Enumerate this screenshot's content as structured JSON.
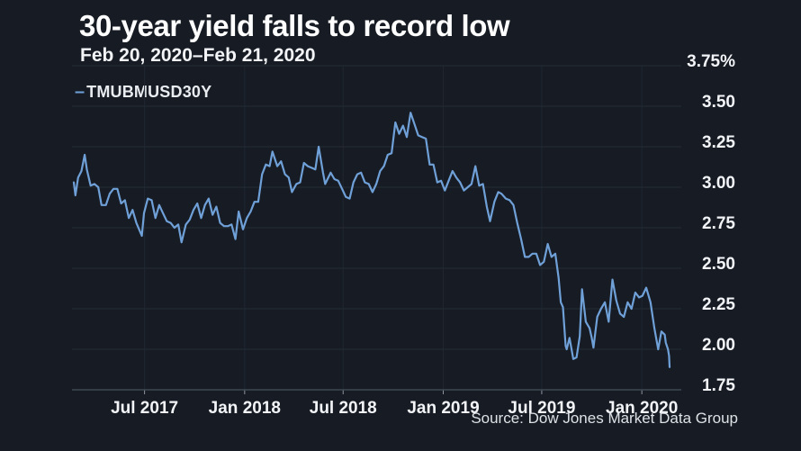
{
  "header": {
    "title": "30-year yield falls to record low",
    "subtitle": "Feb 20, 2020–Feb 21, 2020"
  },
  "legend": {
    "marker": "–",
    "label": "TMUBMUSD30Y"
  },
  "source": "Source: Dow Jones Market Data Group",
  "colors": {
    "background": "#171c24",
    "series_line": "#6fa0d8",
    "grid_horizontal": "#242b35",
    "grid_vertical": "#1f2630",
    "axis_line": "#3e4651",
    "tick": "#8d949e",
    "text_primary": "#ffffff",
    "text_secondary": "#f2f4f7",
    "text_source": "#dde1e6"
  },
  "chart_data": {
    "type": "line",
    "title": "30-year yield falls to record low",
    "subtitle": "Feb 20, 2020–Feb 21, 2020",
    "xlabel": "",
    "ylabel": "",
    "grid": true,
    "legend_position": "top-left",
    "x_range": [
      "2017-02-21",
      "2020-02-21"
    ],
    "ylim": [
      1.75,
      3.75
    ],
    "yticks": [
      {
        "label": "3.75%",
        "value": 3.75
      },
      {
        "label": "3.50",
        "value": 3.5
      },
      {
        "label": "3.25",
        "value": 3.25
      },
      {
        "label": "3.00",
        "value": 3.0
      },
      {
        "label": "2.75",
        "value": 2.75
      },
      {
        "label": "2.50",
        "value": 2.5
      },
      {
        "label": "2.25",
        "value": 2.25
      },
      {
        "label": "2.00",
        "value": 2.0
      },
      {
        "label": "1.75",
        "value": 1.75
      }
    ],
    "xticks": [
      {
        "label": "Jul 2017",
        "date": "2017-07-01"
      },
      {
        "label": "Jan 2018",
        "date": "2018-01-01"
      },
      {
        "label": "Jul 2018",
        "date": "2018-07-01"
      },
      {
        "label": "Jan 2019",
        "date": "2019-01-01"
      },
      {
        "label": "Jul 2019",
        "date": "2019-07-01"
      },
      {
        "label": "Jan 2020",
        "date": "2020-01-01"
      }
    ],
    "series": [
      {
        "name": "TMUBMUSD30Y",
        "color": "#6fa0d8",
        "points": [
          [
            "2017-02-21",
            3.03
          ],
          [
            "2017-02-24",
            2.95
          ],
          [
            "2017-03-01",
            3.06
          ],
          [
            "2017-03-07",
            3.1
          ],
          [
            "2017-03-13",
            3.2
          ],
          [
            "2017-03-17",
            3.11
          ],
          [
            "2017-03-24",
            3.01
          ],
          [
            "2017-03-31",
            3.02
          ],
          [
            "2017-04-07",
            3.0
          ],
          [
            "2017-04-13",
            2.89
          ],
          [
            "2017-04-21",
            2.89
          ],
          [
            "2017-04-28",
            2.96
          ],
          [
            "2017-05-05",
            2.99
          ],
          [
            "2017-05-12",
            2.99
          ],
          [
            "2017-05-19",
            2.9
          ],
          [
            "2017-05-26",
            2.92
          ],
          [
            "2017-06-02",
            2.81
          ],
          [
            "2017-06-09",
            2.86
          ],
          [
            "2017-06-16",
            2.78
          ],
          [
            "2017-06-26",
            2.7
          ],
          [
            "2017-06-30",
            2.84
          ],
          [
            "2017-07-07",
            2.93
          ],
          [
            "2017-07-14",
            2.92
          ],
          [
            "2017-07-21",
            2.81
          ],
          [
            "2017-07-28",
            2.89
          ],
          [
            "2017-08-04",
            2.84
          ],
          [
            "2017-08-11",
            2.79
          ],
          [
            "2017-08-18",
            2.78
          ],
          [
            "2017-08-25",
            2.75
          ],
          [
            "2017-09-01",
            2.77
          ],
          [
            "2017-09-07",
            2.66
          ],
          [
            "2017-09-15",
            2.77
          ],
          [
            "2017-09-22",
            2.8
          ],
          [
            "2017-09-29",
            2.86
          ],
          [
            "2017-10-06",
            2.9
          ],
          [
            "2017-10-13",
            2.81
          ],
          [
            "2017-10-20",
            2.89
          ],
          [
            "2017-10-27",
            2.93
          ],
          [
            "2017-11-03",
            2.83
          ],
          [
            "2017-11-10",
            2.88
          ],
          [
            "2017-11-17",
            2.78
          ],
          [
            "2017-11-24",
            2.76
          ],
          [
            "2017-12-01",
            2.76
          ],
          [
            "2017-12-08",
            2.77
          ],
          [
            "2017-12-15",
            2.68
          ],
          [
            "2017-12-21",
            2.85
          ],
          [
            "2017-12-29",
            2.74
          ],
          [
            "2018-01-05",
            2.81
          ],
          [
            "2018-01-12",
            2.85
          ],
          [
            "2018-01-19",
            2.91
          ],
          [
            "2018-01-26",
            2.91
          ],
          [
            "2018-02-02",
            3.08
          ],
          [
            "2018-02-09",
            3.14
          ],
          [
            "2018-02-16",
            3.13
          ],
          [
            "2018-02-21",
            3.22
          ],
          [
            "2018-03-02",
            3.13
          ],
          [
            "2018-03-09",
            3.16
          ],
          [
            "2018-03-16",
            3.08
          ],
          [
            "2018-03-23",
            3.06
          ],
          [
            "2018-03-29",
            2.97
          ],
          [
            "2018-04-06",
            3.02
          ],
          [
            "2018-04-13",
            3.03
          ],
          [
            "2018-04-20",
            3.15
          ],
          [
            "2018-04-27",
            3.13
          ],
          [
            "2018-05-04",
            3.12
          ],
          [
            "2018-05-11",
            3.11
          ],
          [
            "2018-05-17",
            3.25
          ],
          [
            "2018-05-25",
            3.09
          ],
          [
            "2018-05-29",
            3.02
          ],
          [
            "2018-06-08",
            3.09
          ],
          [
            "2018-06-15",
            3.05
          ],
          [
            "2018-06-22",
            3.04
          ],
          [
            "2018-06-29",
            2.99
          ],
          [
            "2018-07-06",
            2.94
          ],
          [
            "2018-07-13",
            2.93
          ],
          [
            "2018-07-20",
            3.03
          ],
          [
            "2018-07-27",
            3.08
          ],
          [
            "2018-08-03",
            3.09
          ],
          [
            "2018-08-10",
            3.03
          ],
          [
            "2018-08-17",
            3.02
          ],
          [
            "2018-08-24",
            2.97
          ],
          [
            "2018-08-31",
            3.02
          ],
          [
            "2018-09-07",
            3.1
          ],
          [
            "2018-09-14",
            3.13
          ],
          [
            "2018-09-21",
            3.2
          ],
          [
            "2018-09-28",
            3.21
          ],
          [
            "2018-10-05",
            3.4
          ],
          [
            "2018-10-12",
            3.33
          ],
          [
            "2018-10-19",
            3.38
          ],
          [
            "2018-10-26",
            3.31
          ],
          [
            "2018-11-02",
            3.46
          ],
          [
            "2018-11-09",
            3.39
          ],
          [
            "2018-11-16",
            3.32
          ],
          [
            "2018-11-23",
            3.31
          ],
          [
            "2018-11-30",
            3.3
          ],
          [
            "2018-12-07",
            3.14
          ],
          [
            "2018-12-14",
            3.14
          ],
          [
            "2018-12-21",
            3.03
          ],
          [
            "2018-12-28",
            3.04
          ],
          [
            "2019-01-04",
            2.98
          ],
          [
            "2019-01-11",
            3.04
          ],
          [
            "2019-01-18",
            3.1
          ],
          [
            "2019-01-25",
            3.06
          ],
          [
            "2019-02-01",
            3.03
          ],
          [
            "2019-02-08",
            2.98
          ],
          [
            "2019-02-15",
            3.0
          ],
          [
            "2019-02-22",
            3.02
          ],
          [
            "2019-03-01",
            3.13
          ],
          [
            "2019-03-08",
            3.01
          ],
          [
            "2019-03-15",
            3.02
          ],
          [
            "2019-03-22",
            2.88
          ],
          [
            "2019-03-28",
            2.79
          ],
          [
            "2019-04-05",
            2.91
          ],
          [
            "2019-04-12",
            2.97
          ],
          [
            "2019-04-18",
            2.96
          ],
          [
            "2019-04-26",
            2.93
          ],
          [
            "2019-05-03",
            2.92
          ],
          [
            "2019-05-10",
            2.89
          ],
          [
            "2019-05-17",
            2.78
          ],
          [
            "2019-05-24",
            2.68
          ],
          [
            "2019-05-31",
            2.57
          ],
          [
            "2019-06-07",
            2.57
          ],
          [
            "2019-06-14",
            2.59
          ],
          [
            "2019-06-21",
            2.59
          ],
          [
            "2019-06-28",
            2.52
          ],
          [
            "2019-07-05",
            2.54
          ],
          [
            "2019-07-12",
            2.65
          ],
          [
            "2019-07-19",
            2.57
          ],
          [
            "2019-07-26",
            2.59
          ],
          [
            "2019-08-01",
            2.44
          ],
          [
            "2019-08-05",
            2.29
          ],
          [
            "2019-08-09",
            2.26
          ],
          [
            "2019-08-14",
            2.02
          ],
          [
            "2019-08-16",
            2.0
          ],
          [
            "2019-08-21",
            2.07
          ],
          [
            "2019-08-28",
            1.94
          ],
          [
            "2019-09-03",
            1.95
          ],
          [
            "2019-09-09",
            2.08
          ],
          [
            "2019-09-13",
            2.37
          ],
          [
            "2019-09-20",
            2.17
          ],
          [
            "2019-09-27",
            2.13
          ],
          [
            "2019-10-01",
            2.07
          ],
          [
            "2019-10-04",
            2.01
          ],
          [
            "2019-10-11",
            2.2
          ],
          [
            "2019-10-18",
            2.25
          ],
          [
            "2019-10-25",
            2.29
          ],
          [
            "2019-11-01",
            2.17
          ],
          [
            "2019-11-08",
            2.43
          ],
          [
            "2019-11-15",
            2.3
          ],
          [
            "2019-11-22",
            2.22
          ],
          [
            "2019-11-29",
            2.2
          ],
          [
            "2019-12-06",
            2.29
          ],
          [
            "2019-12-13",
            2.25
          ],
          [
            "2019-12-20",
            2.35
          ],
          [
            "2019-12-27",
            2.32
          ],
          [
            "2020-01-02",
            2.33
          ],
          [
            "2020-01-09",
            2.38
          ],
          [
            "2020-01-17",
            2.29
          ],
          [
            "2020-01-24",
            2.13
          ],
          [
            "2020-01-31",
            2.0
          ],
          [
            "2020-02-06",
            2.11
          ],
          [
            "2020-02-12",
            2.09
          ],
          [
            "2020-02-14",
            2.04
          ],
          [
            "2020-02-18",
            2.0
          ],
          [
            "2020-02-20",
            1.96
          ],
          [
            "2020-02-21",
            1.89
          ]
        ]
      }
    ]
  }
}
